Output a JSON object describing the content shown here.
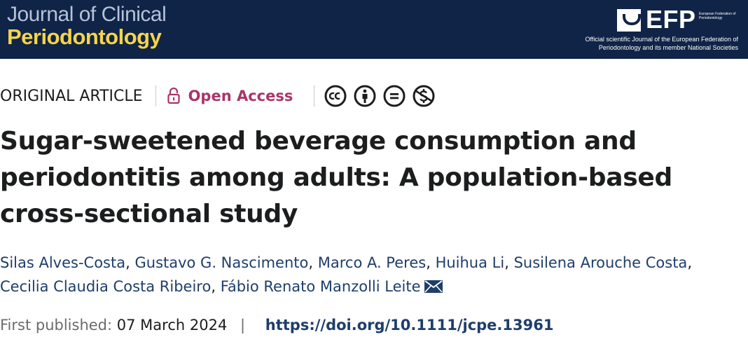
{
  "banner": {
    "journal_line1": "Journal of Clinical",
    "journal_line2": "Periodontology",
    "efp_abbr": "EFP",
    "efp_full": "European Federation of Periodontology",
    "efp_description": "Official scientific Journal of the European Federation of Periodontology and its member National Societies",
    "background_color": "#0f2447",
    "accent_color": "#f6d44b"
  },
  "meta": {
    "article_type": "ORIGINAL ARTICLE",
    "open_access_label": "Open Access",
    "open_access_icon": "lock-open-icon",
    "license_icons": [
      "cc-icon",
      "by-icon",
      "nd-icon",
      "nc-icon"
    ],
    "open_access_color": "#a9356a"
  },
  "title": "Sugar-sweetened beverage consumption and periodontitis among adults: A population-based cross-sectional study",
  "authors": [
    "Silas Alves-Costa",
    "Gustavo G. Nascimento",
    "Marco A. Peres",
    "Huihua Li",
    "Susilena Arouche Costa",
    "Cecilia Claudia Costa Ribeiro",
    "Fábio Renato Manzolli Leite"
  ],
  "author_separator": ",",
  "corresponding_icon": "envelope-icon",
  "publication": {
    "label": "First published:",
    "date": "07 March 2024",
    "separator": "|",
    "doi": "https://doi.org/10.1111/jcpe.13961"
  }
}
